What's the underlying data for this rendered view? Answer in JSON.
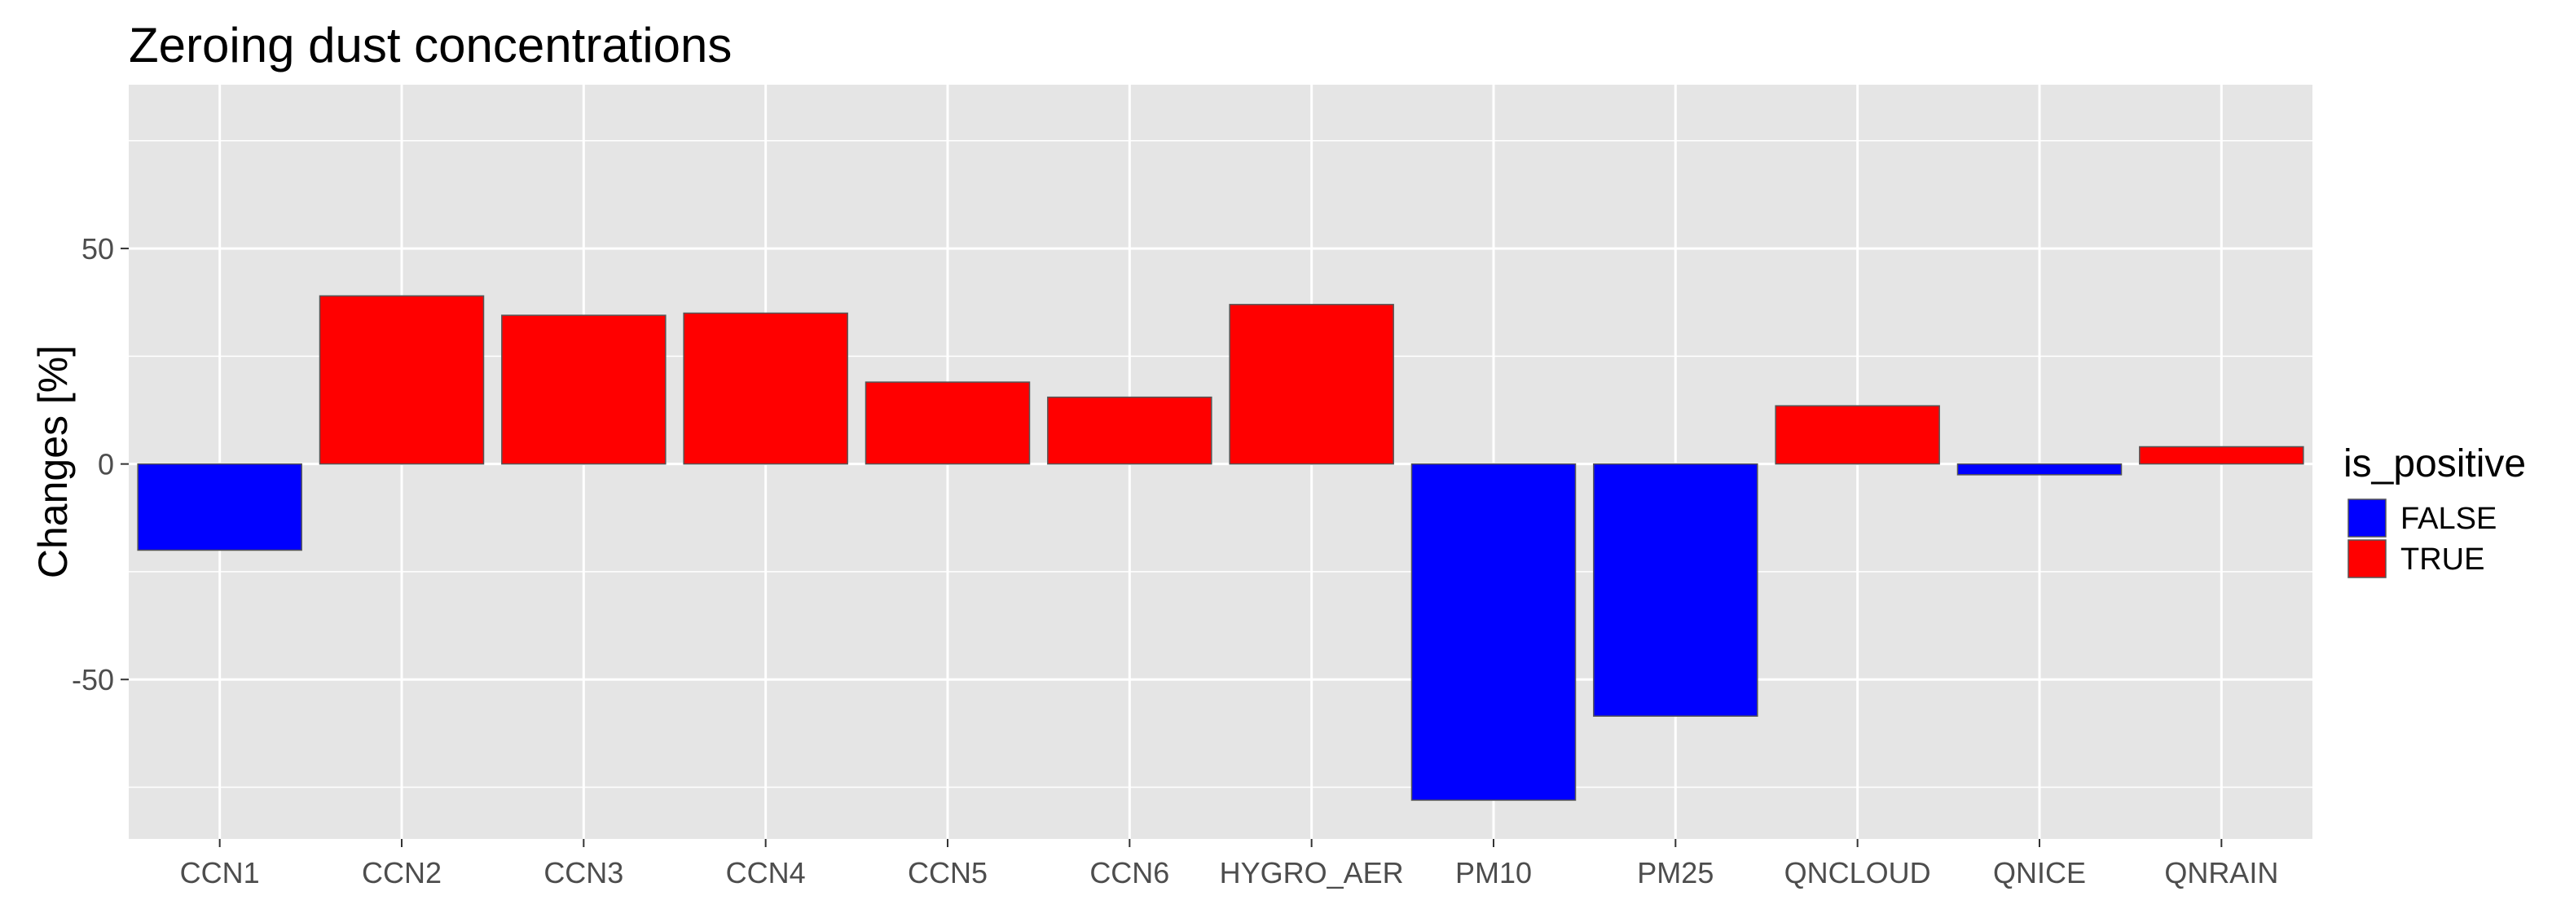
{
  "chart_data": {
    "type": "bar",
    "title": "Zeroing dust concentrations",
    "xlabel": "",
    "ylabel": "Changes [%]",
    "categories": [
      "CCN1",
      "CCN2",
      "CCN3",
      "CCN4",
      "CCN5",
      "CCN6",
      "HYGRO_AER",
      "PM10",
      "PM25",
      "QNCLOUD",
      "QNICE",
      "QNRAIN"
    ],
    "values": [
      -20,
      39,
      34.5,
      35,
      19,
      15.5,
      37,
      -78,
      -58.5,
      13.5,
      -2.5,
      4
    ],
    "ylim": [
      -87,
      88
    ],
    "yticks": [
      -50,
      0,
      50
    ],
    "ytick_labels": [
      "-50",
      "0",
      "50"
    ],
    "grid": true,
    "legend": {
      "title": "is_positive",
      "position": "right",
      "entries": [
        {
          "label": "FALSE",
          "color": "#0000ff"
        },
        {
          "label": "TRUE",
          "color": "#ff0000"
        }
      ]
    },
    "colors": {
      "negative": "#0000ff",
      "positive": "#ff0000",
      "panel": "#e5e5e5",
      "grid": "#ffffff"
    }
  }
}
